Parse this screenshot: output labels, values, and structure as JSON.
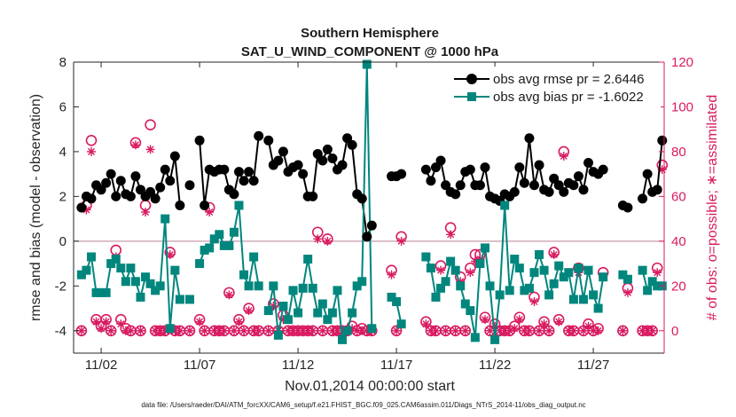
{
  "chart_data": {
    "type": "line",
    "title": "Southern Hemisphere",
    "subtitle": "SAT_U_WIND_COMPONENT @ 1000 hPa",
    "xlabel": "Nov.01,2014 00:00:00 start",
    "ylabel": "rmse and bias (model - observation)",
    "y2label": "# of obs: o=possible; ∗=assimilated",
    "xlim": [
      0.6,
      30.6
    ],
    "ylim": [
      -5,
      8
    ],
    "y2lim": [
      -10,
      120
    ],
    "xticks": [
      2,
      7,
      12,
      17,
      22,
      27
    ],
    "xticklabels": [
      "11/02",
      "11/07",
      "11/12",
      "11/17",
      "11/22",
      "11/27"
    ],
    "yticks": [
      -4,
      -2,
      0,
      2,
      4,
      6,
      8
    ],
    "y2ticks": [
      0,
      20,
      40,
      60,
      80,
      100,
      120
    ],
    "zero_line": 0,
    "footnote": "data file: /Users/raeder/DAI/ATM_forcXX/CAM6_setup/f.e21.FHIST_BGC.f09_025.CAM6assim.011/Diags_NTrS_2014-11/obs_diag_output.nc",
    "series": [
      {
        "name": "obs avg rmse pr = 2.6446",
        "axis": "left",
        "color": "#000000",
        "marker": "circle",
        "x": [
          1.0,
          1.25,
          1.5,
          1.75,
          2.0,
          2.25,
          2.5,
          2.75,
          3.0,
          3.25,
          3.5,
          3.75,
          4.0,
          4.25,
          4.5,
          4.75,
          5.0,
          5.25,
          5.5,
          5.75,
          6.0,
          6.5,
          7.0,
          7.25,
          7.5,
          7.75,
          8.0,
          8.25,
          8.5,
          8.75,
          9.0,
          9.25,
          9.5,
          9.75,
          10.0,
          10.5,
          10.75,
          11.0,
          11.25,
          11.5,
          11.75,
          12.0,
          12.25,
          12.5,
          12.75,
          13.0,
          13.25,
          13.5,
          13.75,
          14.0,
          14.25,
          14.5,
          14.75,
          15.0,
          15.25,
          15.5,
          15.75,
          16.75,
          17.0,
          17.25,
          18.5,
          18.75,
          19.0,
          19.25,
          19.5,
          19.75,
          20.0,
          20.25,
          20.5,
          20.75,
          21.0,
          21.25,
          21.5,
          21.75,
          22.0,
          22.25,
          22.5,
          22.75,
          23.0,
          23.25,
          23.5,
          23.75,
          24.0,
          24.25,
          24.5,
          24.75,
          25.0,
          25.25,
          25.5,
          25.75,
          26.0,
          26.25,
          26.5,
          26.75,
          27.0,
          27.25,
          27.5,
          28.5,
          28.75,
          29.5,
          29.75,
          30.0,
          30.25,
          30.5
        ],
        "y": [
          1.5,
          2.0,
          1.9,
          2.5,
          2.3,
          2.6,
          3.0,
          2.0,
          2.7,
          2.1,
          2.0,
          2.9,
          2.3,
          2.0,
          2.2,
          1.9,
          2.4,
          3.2,
          2.7,
          3.8,
          1.6,
          2.5,
          4.5,
          1.6,
          3.2,
          3.1,
          3.2,
          3.2,
          2.3,
          2.1,
          3.1,
          2.7,
          3.1,
          2.7,
          4.7,
          4.5,
          3.4,
          3.6,
          4.0,
          3.1,
          3.3,
          3.4,
          3.0,
          2.0,
          2.0,
          3.9,
          3.6,
          4.1,
          3.7,
          3.2,
          3.4,
          4.6,
          4.3,
          2.1,
          1.9,
          0.2,
          0.7,
          2.9,
          2.9,
          3.0,
          3.2,
          2.7,
          3.3,
          3.6,
          2.5,
          2.2,
          2.1,
          2.5,
          3.1,
          3.2,
          2.5,
          2.5,
          3.3,
          2.0,
          1.9,
          1.8,
          2.1,
          2.0,
          2.2,
          3.3,
          2.6,
          4.6,
          2.5,
          3.4,
          2.3,
          2.2,
          2.8,
          2.5,
          2.2,
          2.6,
          2.5,
          2.9,
          2.3,
          3.5,
          3.1,
          3.0,
          3.2,
          1.6,
          1.5,
          1.9,
          3.0,
          2.2,
          2.3,
          4.5
        ]
      },
      {
        "name": "obs avg bias pr = -1.6022",
        "axis": "left",
        "color": "#00867d",
        "marker": "square",
        "x": [
          1.0,
          1.25,
          1.5,
          1.75,
          2.0,
          2.25,
          2.5,
          2.75,
          3.0,
          3.25,
          3.5,
          3.75,
          4.0,
          4.25,
          4.5,
          4.75,
          5.0,
          5.25,
          5.5,
          5.75,
          6.0,
          6.5,
          7.0,
          7.25,
          7.5,
          7.75,
          8.0,
          8.25,
          8.5,
          8.75,
          9.0,
          9.25,
          9.5,
          9.75,
          10.0,
          10.5,
          10.75,
          11.0,
          11.25,
          11.5,
          11.75,
          12.0,
          12.25,
          12.5,
          12.75,
          13.0,
          13.25,
          13.5,
          13.75,
          14.0,
          14.25,
          14.5,
          14.75,
          15.0,
          15.25,
          15.5,
          15.75,
          16.75,
          17.0,
          17.25,
          18.5,
          18.75,
          19.0,
          19.25,
          19.5,
          19.75,
          20.0,
          20.25,
          20.5,
          20.75,
          21.0,
          21.25,
          21.5,
          21.75,
          22.0,
          22.25,
          22.5,
          22.75,
          23.0,
          23.25,
          23.5,
          23.75,
          24.0,
          24.25,
          24.5,
          24.75,
          25.0,
          25.25,
          25.5,
          25.75,
          26.0,
          26.25,
          26.5,
          26.75,
          27.0,
          27.25,
          27.5,
          28.5,
          28.75,
          29.5,
          29.75,
          30.0,
          30.25,
          30.5
        ],
        "y": [
          -1.5,
          -1.3,
          -0.7,
          -2.3,
          -2.3,
          -2.3,
          -1.0,
          -0.8,
          -1.2,
          -1.8,
          -1.2,
          -1.8,
          -2.5,
          -1.6,
          -1.9,
          -2.2,
          -2.0,
          1.0,
          -3.9,
          -1.3,
          -2.6,
          -2.6,
          -1.0,
          -0.4,
          -0.3,
          0.1,
          0.3,
          -0.2,
          -0.2,
          0.4,
          1.6,
          -1.5,
          -2.0,
          -0.7,
          -2.0,
          -3.1,
          -2.0,
          -4.2,
          -2.9,
          -3.5,
          -2.2,
          -3.2,
          -2.1,
          -0.8,
          -2.1,
          -3.2,
          -2.8,
          -3.5,
          -3.2,
          -2.2,
          -4.4,
          -4.0,
          -3.2,
          -2.0,
          -1.8,
          7.9,
          -3.9,
          -2.5,
          -2.7,
          -3.7,
          -0.7,
          -1.2,
          -2.5,
          -2.1,
          -1.8,
          -0.9,
          -1.3,
          -2.0,
          -2.8,
          -3.1,
          -4.3,
          -1.0,
          -0.3,
          -2.0,
          -4.4,
          -2.4,
          1.6,
          -2.2,
          -0.8,
          -1.2,
          -2.2,
          -2.1,
          -1.4,
          -0.6,
          -1.3,
          -2.4,
          -1.9,
          -1.1,
          -1.6,
          -1.4,
          -2.6,
          -1.2,
          -2.6,
          -1.3,
          -2.4,
          -3.0,
          -1.6,
          -1.5,
          -1.7,
          -1.3,
          -2.2,
          -1.8,
          -2.0,
          -2.0
        ]
      },
      {
        "name": "possible obs count",
        "axis": "right",
        "color": "#d81b60",
        "marker": "o",
        "x": [
          1.0,
          1.25,
          1.5,
          1.75,
          2.0,
          2.25,
          2.5,
          2.75,
          3.0,
          3.25,
          3.5,
          3.75,
          4.0,
          4.25,
          4.5,
          4.75,
          5.0,
          5.25,
          5.5,
          5.75,
          6.0,
          6.5,
          7.0,
          7.25,
          7.5,
          7.75,
          8.0,
          8.25,
          8.5,
          8.75,
          9.0,
          9.25,
          9.5,
          9.75,
          10.0,
          10.5,
          10.75,
          11.0,
          11.25,
          11.5,
          11.75,
          12.0,
          12.25,
          12.5,
          12.75,
          13.0,
          13.25,
          13.5,
          13.75,
          14.0,
          14.25,
          14.5,
          14.75,
          15.0,
          15.25,
          15.5,
          15.75,
          16.75,
          17.0,
          17.25,
          18.5,
          18.75,
          19.0,
          19.25,
          19.5,
          19.75,
          20.0,
          20.25,
          20.5,
          20.75,
          21.0,
          21.25,
          21.5,
          21.75,
          22.0,
          22.25,
          22.5,
          22.75,
          23.0,
          23.25,
          23.5,
          23.75,
          24.0,
          24.25,
          24.5,
          24.75,
          25.0,
          25.25,
          25.5,
          25.75,
          26.0,
          26.25,
          26.5,
          26.75,
          27.0,
          27.25,
          27.5,
          28.5,
          28.75,
          29.5,
          29.75,
          30.0,
          30.25,
          30.5
        ],
        "y": [
          0,
          56,
          85,
          5,
          2,
          5,
          0,
          36,
          5,
          1,
          0,
          84,
          0,
          56,
          92,
          0,
          0,
          0,
          35,
          0,
          0,
          0,
          5,
          0,
          55,
          0,
          0,
          0,
          17,
          0,
          5,
          0,
          10,
          0,
          0,
          0,
          12,
          0,
          7,
          0,
          0,
          0,
          0,
          0,
          0,
          44,
          0,
          41,
          0,
          0,
          0,
          0,
          2,
          0,
          1,
          0,
          0,
          27,
          0,
          42,
          4,
          0,
          0,
          29,
          0,
          46,
          0,
          24,
          0,
          28,
          34,
          34,
          6,
          0,
          3,
          0,
          0,
          0,
          2,
          6,
          0,
          0,
          15,
          0,
          4,
          0,
          35,
          5,
          80,
          0,
          0,
          28,
          0,
          3,
          0,
          1,
          26,
          0,
          19,
          0,
          0,
          0,
          28,
          74
        ]
      },
      {
        "name": "assimilated obs count",
        "axis": "right",
        "color": "#d81b60",
        "marker": "*",
        "x": [
          1.0,
          1.25,
          1.5,
          1.75,
          2.0,
          2.25,
          2.5,
          2.75,
          3.0,
          3.25,
          3.5,
          3.75,
          4.0,
          4.25,
          4.5,
          4.75,
          5.0,
          5.25,
          5.5,
          5.75,
          6.0,
          6.5,
          7.0,
          7.25,
          7.5,
          7.75,
          8.0,
          8.25,
          8.5,
          8.75,
          9.0,
          9.25,
          9.5,
          9.75,
          10.0,
          10.5,
          10.75,
          11.0,
          11.25,
          11.5,
          11.75,
          12.0,
          12.25,
          12.5,
          12.75,
          13.0,
          13.25,
          13.5,
          13.75,
          14.0,
          14.25,
          14.5,
          14.75,
          15.0,
          15.25,
          15.5,
          15.75,
          16.75,
          17.0,
          17.25,
          18.5,
          18.75,
          19.0,
          19.25,
          19.5,
          19.75,
          20.0,
          20.25,
          20.5,
          20.75,
          21.0,
          21.25,
          21.5,
          21.75,
          22.0,
          22.25,
          22.5,
          22.75,
          23.0,
          23.25,
          23.5,
          23.75,
          24.0,
          24.25,
          24.5,
          24.75,
          25.0,
          25.25,
          25.5,
          25.75,
          26.0,
          26.25,
          26.5,
          26.75,
          27.0,
          27.25,
          27.5,
          28.5,
          28.75,
          29.5,
          29.75,
          30.0,
          30.25,
          30.5
        ],
        "y": [
          0,
          54,
          80,
          4,
          1,
          4,
          0,
          33,
          3,
          0,
          0,
          83,
          0,
          53,
          81,
          0,
          0,
          0,
          34,
          0,
          0,
          0,
          4,
          0,
          53,
          0,
          0,
          0,
          16,
          0,
          4,
          0,
          9,
          0,
          0,
          0,
          11,
          0,
          5,
          0,
          0,
          0,
          0,
          0,
          0,
          41,
          0,
          40,
          0,
          0,
          0,
          0,
          1,
          0,
          0,
          0,
          0,
          25,
          0,
          40,
          3,
          0,
          0,
          27,
          0,
          43,
          0,
          22,
          0,
          26,
          31,
          32,
          5,
          0,
          2,
          0,
          0,
          0,
          1,
          5,
          0,
          0,
          13,
          0,
          3,
          0,
          34,
          4,
          78,
          0,
          0,
          26,
          0,
          2,
          0,
          0,
          24,
          0,
          17,
          0,
          0,
          0,
          26,
          72
        ]
      }
    ]
  }
}
